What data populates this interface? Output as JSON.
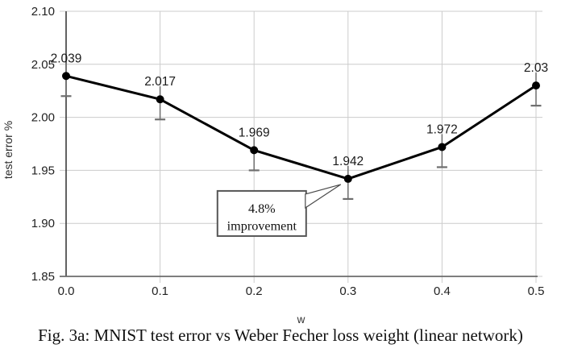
{
  "figure": {
    "caption": "Fig. 3a: MNIST test error vs Weber Fecher loss weight (linear network)"
  },
  "chart_data": {
    "type": "line",
    "title": "",
    "xlabel": "w",
    "ylabel": "test error %",
    "x": [
      0.0,
      0.1,
      0.2,
      0.3,
      0.4,
      0.5
    ],
    "series": [
      {
        "name": "MNIST test error",
        "values": [
          2.039,
          2.017,
          1.969,
          1.942,
          1.972,
          2.03
        ]
      }
    ],
    "point_labels": [
      "2.039",
      "2.017",
      "1.969",
      "1.942",
      "1.972",
      "2.03"
    ],
    "error_bar": 0.019,
    "xlim": [
      0.0,
      0.5
    ],
    "ylim": [
      1.85,
      2.1
    ],
    "xticks": [
      "0.0",
      "0.1",
      "0.2",
      "0.3",
      "0.4",
      "0.5"
    ],
    "yticks": [
      "2.10",
      "2.05",
      "2.00",
      "1.95",
      "1.90",
      "1.85"
    ],
    "grid": true,
    "legend": "none",
    "annotation": {
      "lines": [
        "4.8%",
        "improvement"
      ],
      "target_x": 0.3,
      "target_y": 1.942
    },
    "colors": {
      "line": "#000000",
      "marker": "#000000",
      "grid": "#cccccc",
      "y_axis": "#3a3a3a",
      "x_axis": "#6b6b6b",
      "error_bar": "#6e6e6e",
      "text": "#1a1a1a",
      "annotation_border": "#565656",
      "background": "#ffffff"
    }
  }
}
